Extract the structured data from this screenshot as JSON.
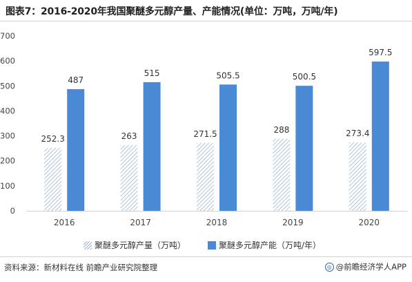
{
  "title": "图表7：2016-2020年我国聚醚多元醇产量、产能情况(单位：万吨，万吨/年)",
  "source": "资料来源：新材料在线 前瞻产业研究院整理",
  "brand": "@前瞻经济学人APP",
  "colors": {
    "production": "#9bb4d2",
    "capacity": "#4a8ad4"
  },
  "chart_data": {
    "type": "bar",
    "categories": [
      "2016",
      "2017",
      "2018",
      "2019",
      "2020"
    ],
    "series": [
      {
        "name": "聚醚多元醇产量（万吨）",
        "values": [
          252.3,
          263,
          271.5,
          288,
          273.4
        ],
        "labels": [
          "252.3",
          "263",
          "271.5",
          "288",
          "273.4"
        ]
      },
      {
        "name": "聚醚多元醇产能（万吨/年）",
        "values": [
          487,
          515,
          505.5,
          500.5,
          597.5
        ],
        "labels": [
          "487",
          "515",
          "505.5",
          "500.5",
          "597.5"
        ]
      }
    ],
    "yticks": [
      "0",
      "100",
      "200",
      "300",
      "400",
      "500",
      "600",
      "700"
    ],
    "ylim": [
      0,
      700
    ],
    "grid": false,
    "legend": "bottom"
  }
}
